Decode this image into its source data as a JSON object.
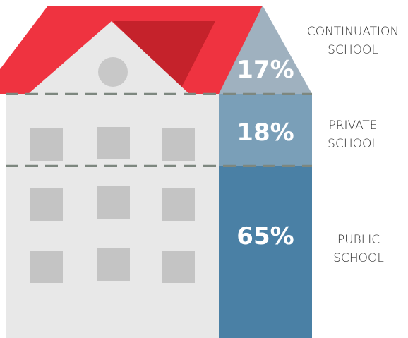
{
  "chart_data": {
    "type": "house",
    "categories": [
      "CONTINUATION SCHOOL",
      "PRIVATE SCHOOL",
      "PUBLIC SCHOOL"
    ],
    "values": [
      17,
      18,
      65
    ],
    "value_labels": [
      "17%",
      "18%",
      "65%"
    ],
    "colors": [
      "#9fb1bf",
      "#7a9fb8",
      "#4a80a5"
    ]
  }
}
